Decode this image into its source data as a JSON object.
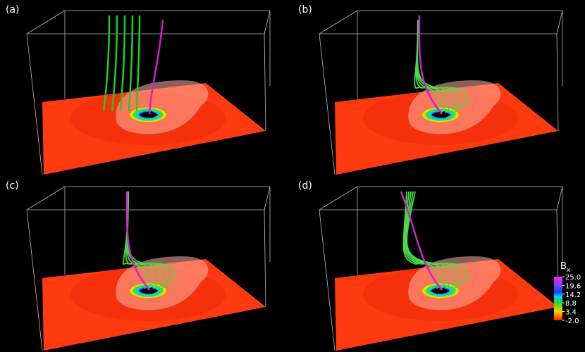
{
  "panels": [
    {
      "label": "(a)"
    },
    {
      "label": "(b)"
    },
    {
      "label": "(c)"
    },
    {
      "label": "(d)"
    }
  ],
  "colorbar": {
    "title": "B",
    "subscript": "x",
    "range": [
      -2.0,
      25.0
    ],
    "ticks": [
      {
        "value": 25.0,
        "label": "25.0"
      },
      {
        "value": 19.6,
        "label": "19.6"
      },
      {
        "value": 14.2,
        "label": "14.2"
      },
      {
        "value": 8.8,
        "label": "8.8"
      },
      {
        "value": 3.4,
        "label": "3.4"
      },
      {
        "value": -2.0,
        "label": "-2.0"
      }
    ]
  }
}
